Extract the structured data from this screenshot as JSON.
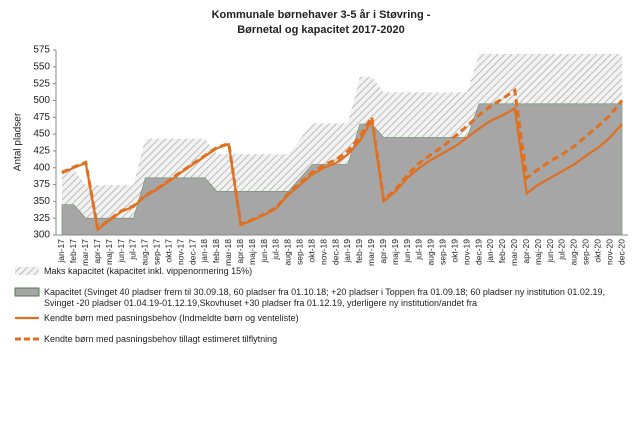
{
  "chart_data": {
    "type": "area_line",
    "title": [
      "Kommunale børnehaver 3-5 år i Støvring -",
      "Børnetal og kapacitet 2017-2020"
    ],
    "ylabel": "Antal pladser",
    "categories": [
      "jan-17",
      "feb-17",
      "mar-17",
      "apr-17",
      "maj-17",
      "jun-17",
      "jul-17",
      "aug-17",
      "sep-17",
      "okt-17",
      "nov-17",
      "dec-17",
      "jan-18",
      "feb-18",
      "mar-18",
      "apr-18",
      "maj-18",
      "jun-18",
      "jul-18",
      "aug-18",
      "sep-18",
      "okt-18",
      "nov-18",
      "dec-18",
      "jan-19",
      "feb-19",
      "mar-19",
      "apr-19",
      "maj-19",
      "jun-19",
      "jul-19",
      "aug-19",
      "sep-19",
      "okt-19",
      "nov-19",
      "dec-19",
      "jan-20",
      "feb-20",
      "mar-20",
      "apr-20",
      "maj-20",
      "jun-20",
      "jul-20",
      "aug-20",
      "sep-20",
      "okt-20",
      "nov-20",
      "dec-20"
    ],
    "series": [
      {
        "name": "Maks kapacitet (kapacitet inkl. vippenormering 15%)",
        "kind": "area",
        "pattern": "hatch",
        "color": "#9a9a9a",
        "values": [
          397,
          397,
          374,
          374,
          374,
          374,
          374,
          443,
          443,
          443,
          443,
          443,
          443,
          420,
          420,
          420,
          420,
          420,
          420,
          420,
          443,
          466,
          466,
          466,
          466,
          535,
          535,
          512,
          512,
          512,
          512,
          512,
          512,
          512,
          512,
          569,
          569,
          569,
          569,
          569,
          569,
          569,
          569,
          569,
          569,
          569,
          569,
          569
        ]
      },
      {
        "name": "Kapacitet (Svinget 40 pladser frem til 30.09.18, 60 pladser fra 01.10.18; +20 pladser i Toppen fra 01.09.18; 60 pladser ny institution 01.02.19, Svinget -20 pladser 01.04.19-01.12.19,Skovhuset +30 pladser fra 01.12.19, yderligere ny institution/andet fra",
        "kind": "area",
        "pattern": "solid",
        "color": "#a6a6a6",
        "values": [
          345,
          345,
          325,
          325,
          325,
          325,
          325,
          385,
          385,
          385,
          385,
          385,
          385,
          365,
          365,
          365,
          365,
          365,
          365,
          365,
          385,
          405,
          405,
          405,
          405,
          465,
          465,
          445,
          445,
          445,
          445,
          445,
          445,
          445,
          445,
          495,
          495,
          495,
          495,
          495,
          495,
          495,
          495,
          495,
          495,
          495,
          495,
          495
        ]
      },
      {
        "name": "Kendte børn med pasningsbehov (Indmeldte børn og venteliste)",
        "kind": "line",
        "dashed": false,
        "color": "#e07020",
        "values": [
          392,
          400,
          407,
          308,
          322,
          335,
          342,
          358,
          368,
          380,
          393,
          405,
          417,
          429,
          435,
          315,
          322,
          330,
          340,
          360,
          375,
          390,
          400,
          407,
          420,
          440,
          470,
          350,
          365,
          385,
          400,
          412,
          422,
          432,
          445,
          458,
          470,
          478,
          488,
          362,
          375,
          385,
          395,
          405,
          418,
          430,
          445,
          465
        ]
      },
      {
        "name": "Kendte børn med pasningsbehov tillagt estimeret tilflytning",
        "kind": "line",
        "dashed": true,
        "color": "#e07020",
        "values": [
          393,
          401,
          408,
          309,
          323,
          336,
          343,
          359,
          369,
          381,
          394,
          406,
          418,
          430,
          436,
          316,
          323,
          331,
          341,
          362,
          378,
          393,
          404,
          412,
          425,
          446,
          475,
          352,
          368,
          390,
          407,
          420,
          432,
          447,
          462,
          478,
          492,
          503,
          515,
          385,
          398,
          410,
          420,
          432,
          447,
          462,
          478,
          500
        ]
      }
    ],
    "ylim": [
      300,
      575
    ],
    "yticks": [
      300,
      325,
      350,
      375,
      400,
      425,
      450,
      475,
      500,
      525,
      550,
      575
    ],
    "grid": false
  }
}
